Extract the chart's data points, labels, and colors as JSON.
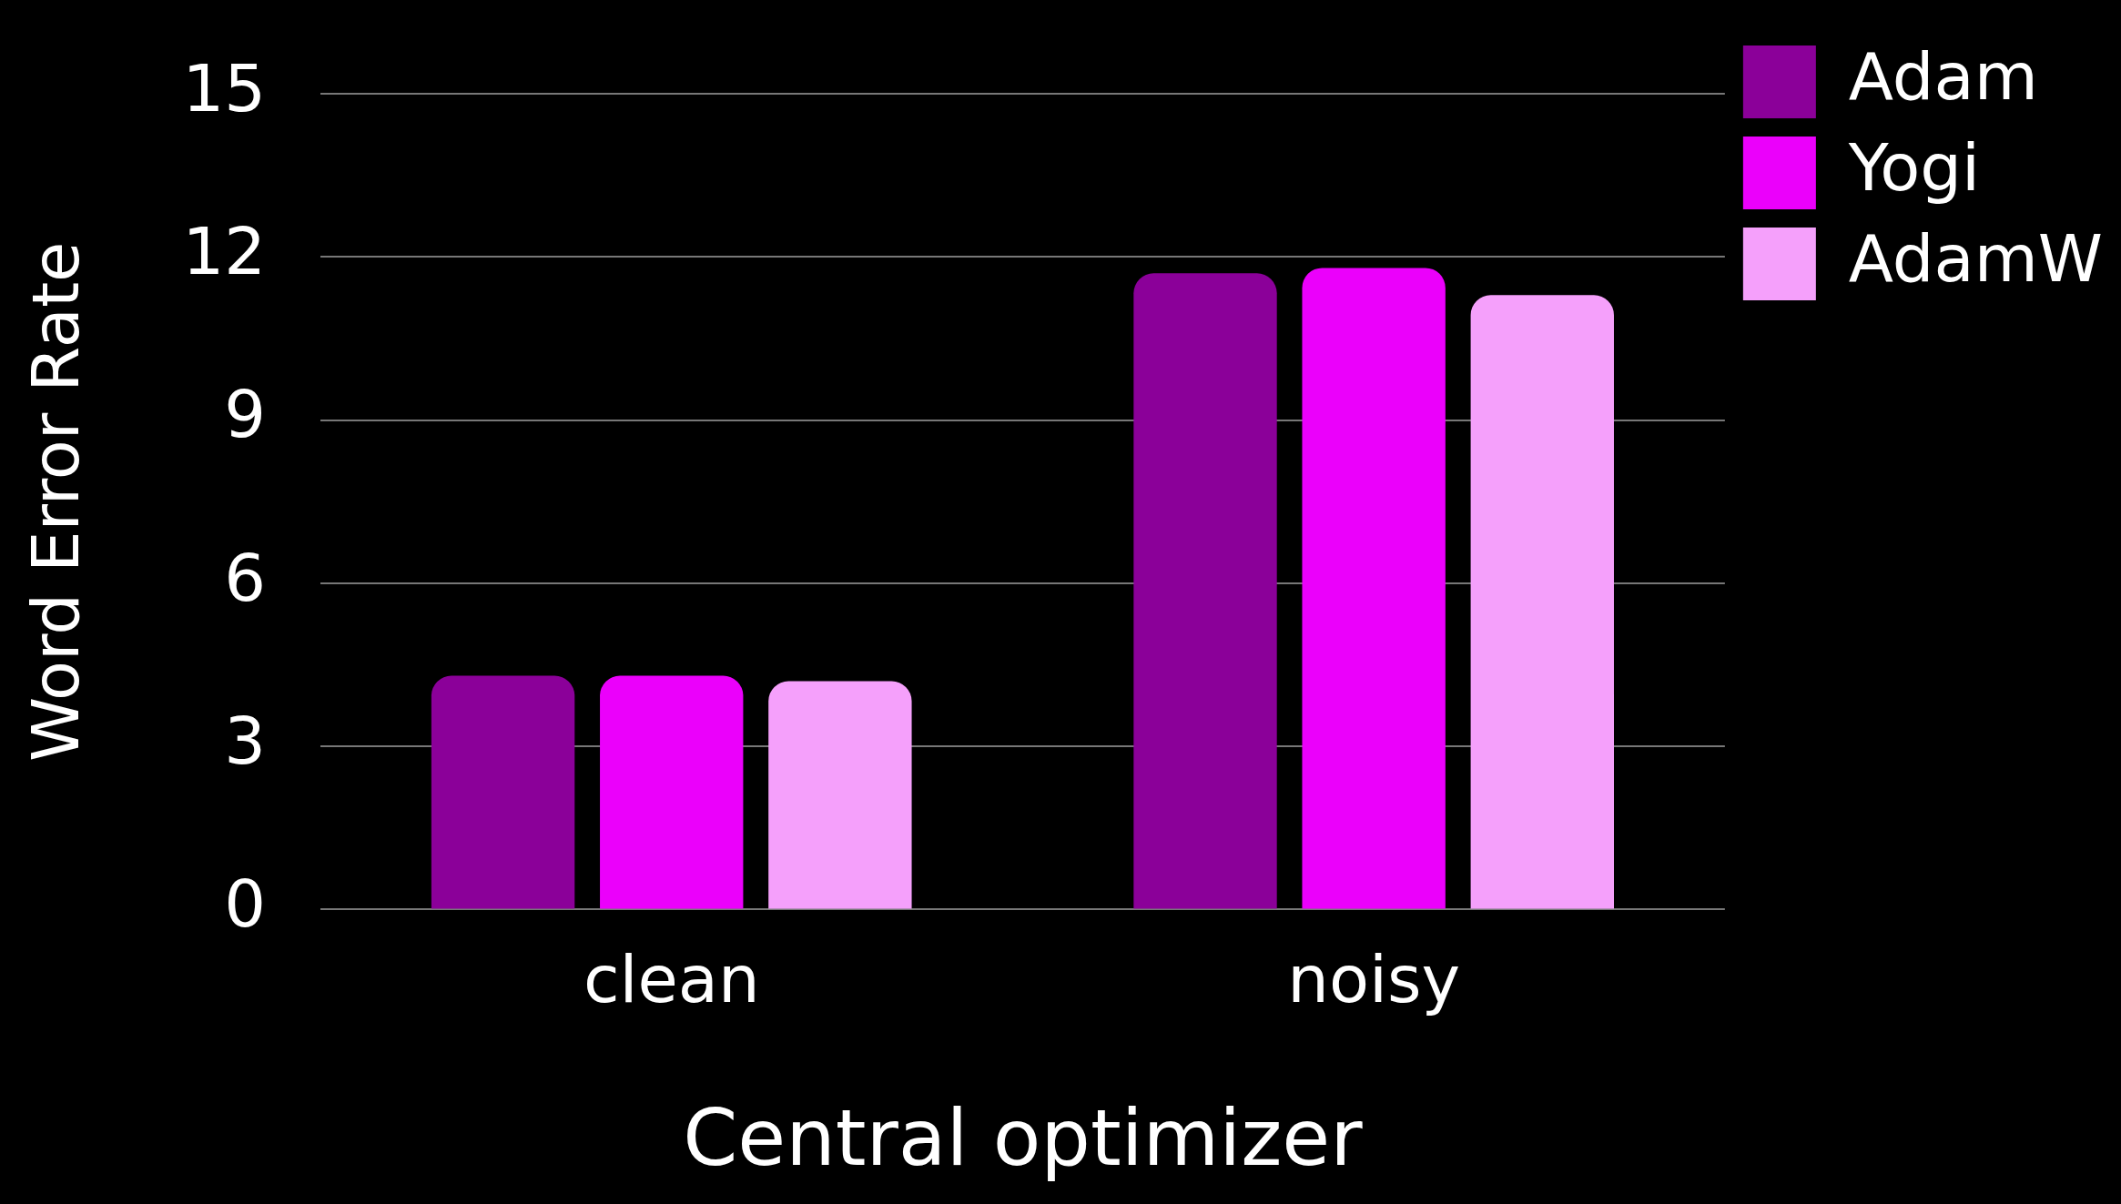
{
  "chart_data": {
    "type": "bar",
    "xlabel": "Central optimizer",
    "ylabel": "Word Error Rate",
    "categories": [
      "clean",
      "noisy"
    ],
    "series": [
      {
        "name": "Adam",
        "color": "#8b0099",
        "values": [
          4.3,
          11.7
        ]
      },
      {
        "name": "Yogi",
        "color": "#eb00fb",
        "values": [
          4.3,
          11.8
        ]
      },
      {
        "name": "AdamW",
        "color": "#f5a0fb",
        "values": [
          4.2,
          11.3
        ]
      }
    ],
    "ylim": [
      0,
      15
    ],
    "yticks": [
      0,
      3,
      6,
      9,
      12,
      15
    ],
    "grid": "y",
    "legend": "top right"
  }
}
